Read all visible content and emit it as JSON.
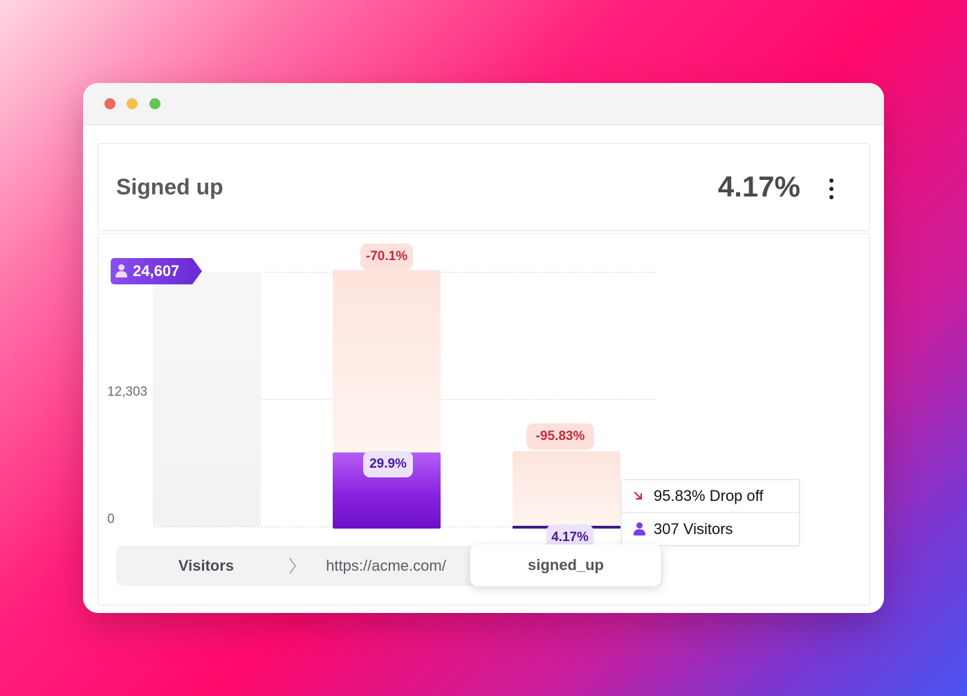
{
  "window": {
    "traffic_lights": [
      "close",
      "minimize",
      "maximize"
    ]
  },
  "card": {
    "title": "Signed up",
    "value": "4.17%",
    "menu_icon": "kebab-icon"
  },
  "chart": {
    "total_tag": "24,607",
    "y_labels": [
      "12,303",
      "0"
    ],
    "steps": [
      {
        "name": "Visitors",
        "drop": "",
        "conversion": ""
      },
      {
        "name": "https://acme.com/",
        "drop": "-70.1%",
        "conversion": "29.9%"
      },
      {
        "name": "signed_up",
        "drop": "-95.83%",
        "conversion": "4.17%"
      }
    ],
    "tooltip": {
      "dropoff": "95.83% Drop off",
      "visitors": "307 Visitors"
    }
  },
  "colors": {
    "accent": "#7c3aed",
    "drop_red": "#c8283c"
  },
  "chart_data": {
    "type": "bar",
    "categories": [
      "Visitors",
      "https://acme.com/",
      "signed_up"
    ],
    "series": [
      {
        "name": "",
        "values": [
          24607,
          7358,
          307
        ]
      }
    ],
    "ylim": [
      0,
      24607
    ]
  }
}
